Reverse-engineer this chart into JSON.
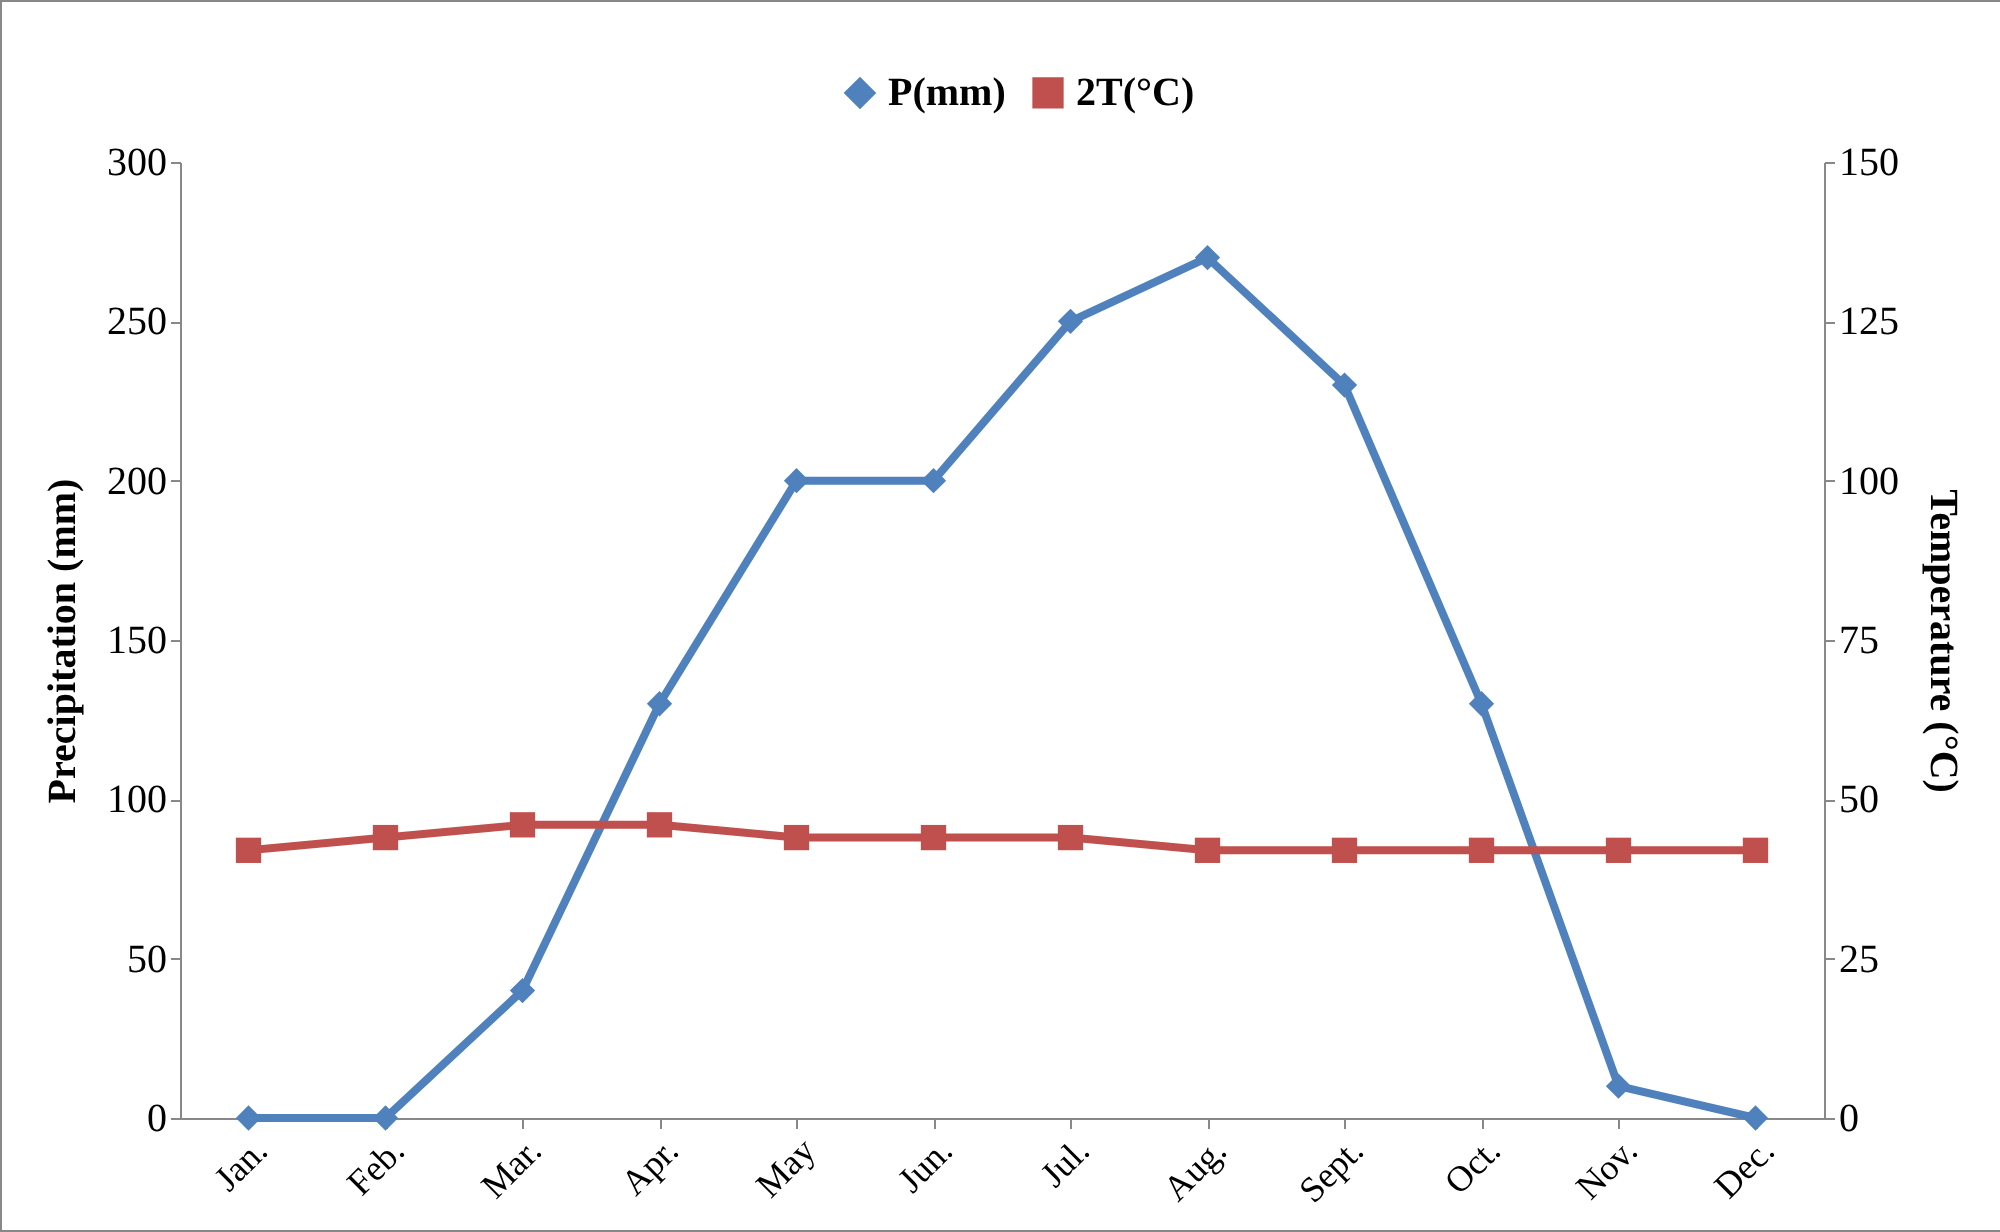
{
  "chart_data": {
    "type": "line",
    "ylabel": "Precipitation (mm)",
    "y2label": "Temperature (°C)",
    "categories": [
      "Jan.",
      "Feb.",
      "Mar.",
      "Apr.",
      "May",
      "Jun.",
      "Jul.",
      "Aug.",
      "Sept.",
      "Oct.",
      "Nov.",
      "Dec."
    ],
    "series": [
      {
        "name": "P(mm)",
        "color": "#4f81bd",
        "marker": "diamond",
        "values": [
          0,
          0,
          40,
          130,
          200,
          200,
          250,
          270,
          230,
          130,
          10,
          0
        ]
      },
      {
        "name": "2T(°C)",
        "color": "#c0504d",
        "marker": "square",
        "axis": "y2",
        "values": [
          42,
          44,
          46,
          46,
          44,
          44,
          44,
          42,
          42,
          42,
          42,
          42
        ]
      }
    ],
    "ylim": [
      0,
      300
    ],
    "yticks": [
      0,
      50,
      100,
      150,
      200,
      250,
      300
    ],
    "y2lim": [
      0,
      150
    ],
    "y2ticks": [
      0,
      25,
      50,
      75,
      100,
      125,
      150
    ],
    "legend": "top",
    "grid": false,
    "line_style": "solid"
  }
}
